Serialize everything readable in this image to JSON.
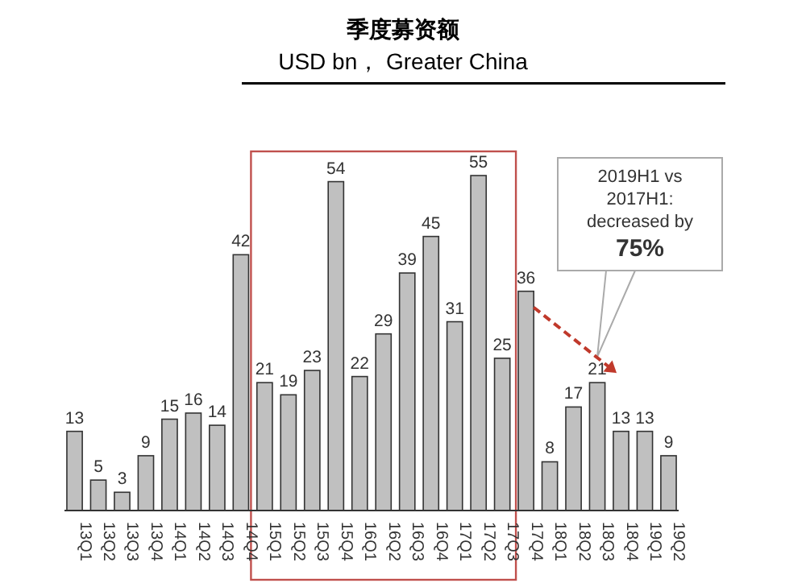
{
  "chart_data": {
    "type": "bar",
    "title": "季度募资额",
    "subtitle": "USD bn， Greater China",
    "categories": [
      "13Q1",
      "13Q2",
      "13Q3",
      "13Q4",
      "14Q1",
      "14Q2",
      "14Q3",
      "14Q4",
      "15Q1",
      "15Q2",
      "15Q3",
      "15Q4",
      "16Q1",
      "16Q2",
      "16Q3",
      "16Q4",
      "17Q1",
      "17Q2",
      "17Q3",
      "17Q4",
      "18Q1",
      "18Q2",
      "18Q3",
      "18Q4",
      "19Q1",
      "19Q2"
    ],
    "values": [
      13,
      5,
      3,
      9,
      15,
      16,
      14,
      42,
      21,
      19,
      23,
      54,
      22,
      29,
      39,
      45,
      31,
      55,
      25,
      36,
      8,
      17,
      21,
      13,
      13,
      9
    ],
    "color": "#c0c0c0",
    "data_labels": true,
    "annotations": [
      "2019H1 vs\n2017H1:\ndecreased by\n75%"
    ]
  }
}
